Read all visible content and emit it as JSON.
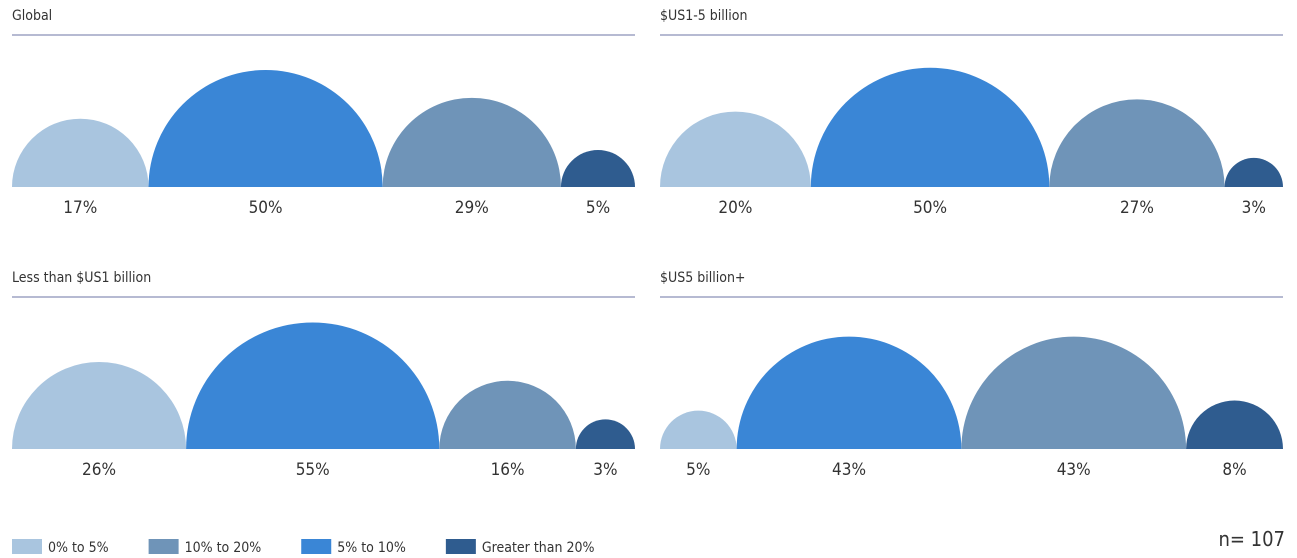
{
  "legend": {
    "names": [
      "0% to 5%",
      "10% to 20%",
      "5% to 10%",
      "Greater than 20%"
    ],
    "colors": [
      "#a9c5df",
      "#6f94b8",
      "#3a86d6",
      "#2f5c8f"
    ]
  },
  "chart_data": [
    {
      "type": "semicircle",
      "title": "Global",
      "values": [
        17,
        29,
        50,
        5
      ],
      "value_labels": [
        "17%",
        "29%",
        "50%",
        "5%"
      ]
    },
    {
      "type": "semicircle",
      "title": "$US1-5 billion",
      "values": [
        20,
        27,
        50,
        3
      ],
      "value_labels": [
        "20%",
        "27%",
        "50%",
        "3%"
      ]
    },
    {
      "type": "semicircle",
      "title": "Less than $US1 billion",
      "values": [
        26,
        16,
        55,
        3
      ],
      "value_labels": [
        "26%",
        "16%",
        "55%",
        "3%"
      ]
    },
    {
      "type": "semicircle",
      "title": "$US5 billion+",
      "values": [
        5,
        43,
        43,
        8
      ],
      "value_labels": [
        "5%",
        "43%",
        "43%",
        "8%"
      ]
    }
  ],
  "note": "n= 107"
}
